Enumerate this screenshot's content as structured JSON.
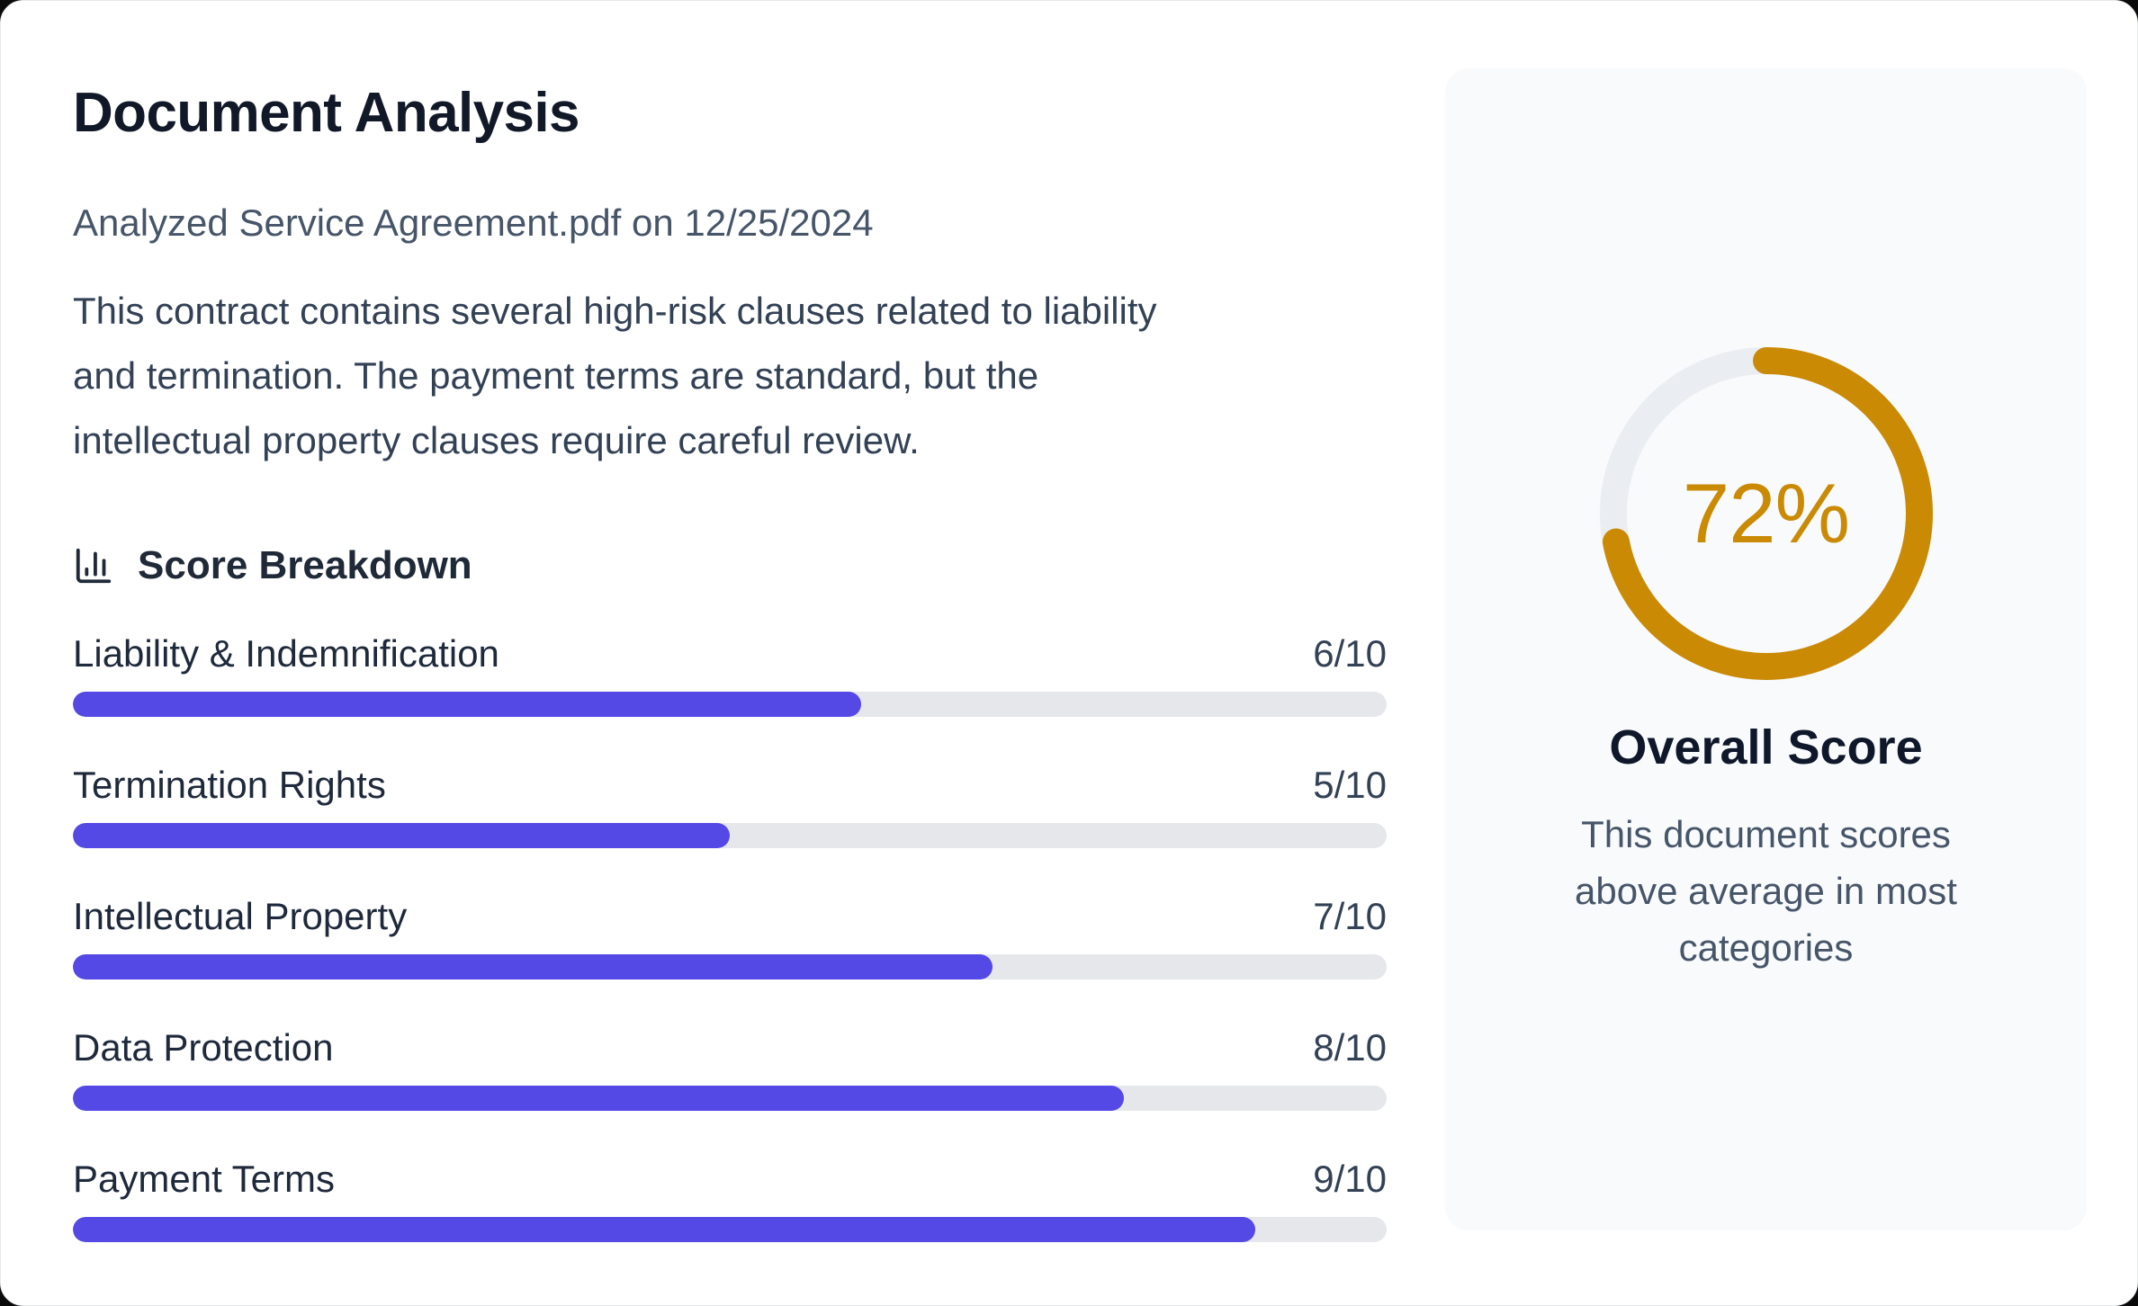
{
  "header": {
    "title": "Document Analysis",
    "subtitle": "Analyzed Service Agreement.pdf on 12/25/2024",
    "file_name": "Service Agreement.pdf",
    "analyzed_date": "12/25/2024"
  },
  "summary": "This contract contains several high-risk clauses related to liability and termination. The payment terms are standard, but the intellectual property clauses require careful review.",
  "summary_lines": [
    "This contract contains several high-risk clauses related to liability",
    "and termination. The payment terms are standard, but the",
    "intellectual property clauses require careful review."
  ],
  "score_breakdown": {
    "heading": "Score Breakdown",
    "icon": "bar-chart-icon",
    "items": [
      {
        "label": "Liability & Indemnification",
        "score": 6,
        "max": 10,
        "display": "6/10"
      },
      {
        "label": "Termination Rights",
        "score": 5,
        "max": 10,
        "display": "5/10"
      },
      {
        "label": "Intellectual Property",
        "score": 7,
        "max": 10,
        "display": "7/10"
      },
      {
        "label": "Data Protection",
        "score": 8,
        "max": 10,
        "display": "8/10"
      },
      {
        "label": "Payment Terms",
        "score": 9,
        "max": 10,
        "display": "9/10"
      }
    ]
  },
  "overall": {
    "percent": 72,
    "percent_label": "72%",
    "title": "Overall Score",
    "description": "This document scores above average in most categories",
    "description_lines": [
      "This document scores",
      "above average in most",
      "categories"
    ]
  },
  "colors": {
    "accent_indigo": "#5549E5",
    "accent_gold": "#CA8A04",
    "bar_track": "#E5E7EB",
    "ring_track": "#EAEEF2",
    "panel_bg": "#F8FAFC"
  }
}
